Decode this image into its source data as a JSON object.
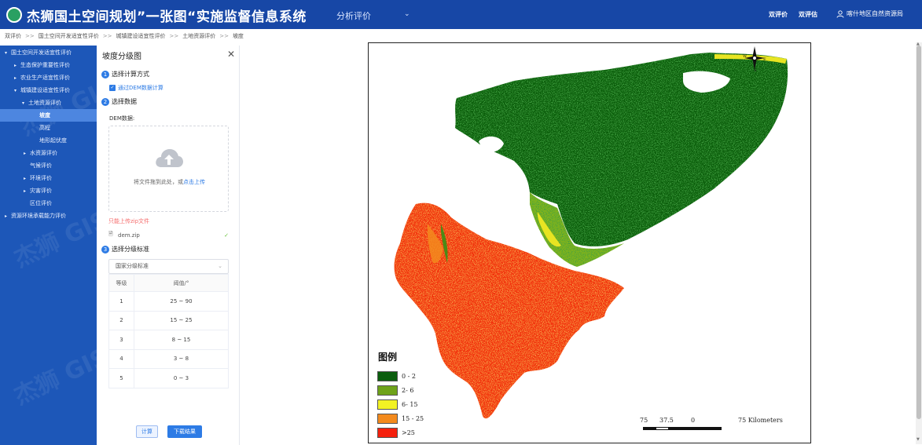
{
  "header": {
    "app_title": "杰狮国土空间规划”一张图“实施监督信息系统",
    "analysis_menu": "分析评价",
    "link_1": "双评价",
    "link_2": "双评估",
    "user": "喀什地区自然资源局"
  },
  "breadcrumb": [
    "双评价",
    "国土空间开发适宜性评价",
    "城镇建设适宜性评价",
    "土地资源评价",
    "坡度"
  ],
  "sidebar": {
    "watermark": "杰狮 GISINF",
    "items": [
      {
        "label": "国土空间开发适宜性评价",
        "expanded": true
      },
      {
        "label": "生态保护重要性评价",
        "expanded": false
      },
      {
        "label": "农业生产适宜性评价",
        "expanded": false
      },
      {
        "label": "城镇建设适宜性评价",
        "expanded": true
      },
      {
        "label": "土地资源评价",
        "expanded": true
      },
      {
        "label": "坡度",
        "active": true
      },
      {
        "label": "高程"
      },
      {
        "label": "地形起伏度"
      },
      {
        "label": "水资源评价",
        "expanded": false
      },
      {
        "label": "气候评价"
      },
      {
        "label": "环境评价",
        "expanded": false
      },
      {
        "label": "灾害评价",
        "expanded": false
      },
      {
        "label": "区位评价"
      },
      {
        "label": "资源环境承载能力评价",
        "expanded": false
      }
    ]
  },
  "panel": {
    "title": "坡度分级图",
    "step1": "选择计算方式",
    "step1_option": "通过DEM数据计算",
    "step2": "选择数据",
    "dem_label": "DEM数据:",
    "upload_text": "将文件拖到此处，或",
    "upload_link": "点击上传",
    "upload_tip": "只能上传zip文件",
    "file_name": "dem.zip",
    "step3": "选择分级标准",
    "select_value": "国家分级标准",
    "table_headers": [
      "等级",
      "阈值/°"
    ],
    "table_rows": [
      [
        "1",
        "25 ~ 90"
      ],
      [
        "2",
        "15 ~ 25"
      ],
      [
        "3",
        "8 ~ 15"
      ],
      [
        "4",
        "3 ~ 8"
      ],
      [
        "5",
        "0 ~ 3"
      ]
    ],
    "btn_calc": "计算",
    "btn_download": "下载结果"
  },
  "map": {
    "compass": {
      "n": "N",
      "s": "S",
      "e": "E",
      "w": "W"
    },
    "legend_title": "图例",
    "legend": [
      {
        "label": "0 - 2",
        "color": "#0b5e0e"
      },
      {
        "label": "2- 6",
        "color": "#6ea21a"
      },
      {
        "label": "6- 15",
        "color": "#f2f224"
      },
      {
        "label": "15 - 25",
        "color": "#f38a1d"
      },
      {
        "label": ">25",
        "color": "#f5200d"
      }
    ],
    "scale_labels": [
      "75",
      "37.5",
      "0",
      "75 Kilometers"
    ]
  },
  "colors": {
    "header_bg": "#1747a6",
    "sidebar_bg": "#1d57b8",
    "accent": "#2d7be5"
  }
}
